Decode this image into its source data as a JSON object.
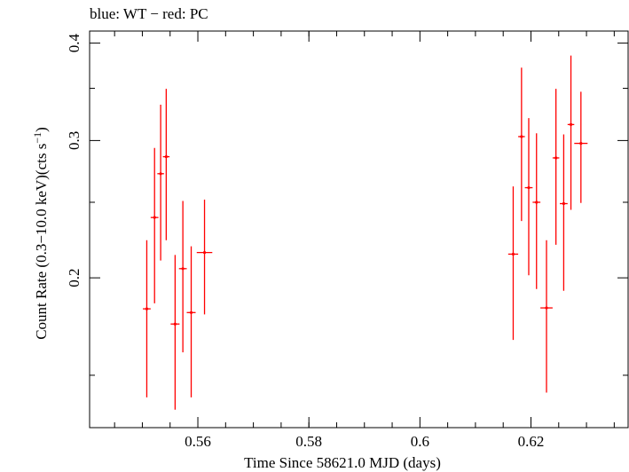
{
  "chart_data": {
    "type": "scatter",
    "title": "blue: WT − red: PC",
    "xlabel": "Time Since 58621.0 MJD (days)",
    "ylabel_main": "Count Rate (0.3−10.0 keV)(cts s",
    "ylabel_sup": "−1",
    "ylabel_close": ")",
    "xlim": [
      0.5405,
      0.6375
    ],
    "ylim": [
      0.1285,
      0.4145
    ],
    "y_scale": "log",
    "grid": false,
    "x_ticks": [
      {
        "value": 0.56,
        "label": "0.56"
      },
      {
        "value": 0.58,
        "label": "0.58"
      },
      {
        "value": 0.6,
        "label": "0.6"
      },
      {
        "value": 0.62,
        "label": "0.62"
      }
    ],
    "y_ticks": [
      {
        "value": 0.2,
        "label": "0.2"
      },
      {
        "value": 0.3,
        "label": "0.3"
      },
      {
        "value": 0.4,
        "label": "0.4"
      }
    ],
    "series": [
      {
        "color": "#ff0000",
        "points": [
          {
            "x": 0.5508,
            "xerr": 0.0007,
            "y": 0.1825,
            "ylo": 0.1405,
            "yhi": 0.2235
          },
          {
            "x": 0.5522,
            "xerr": 0.0007,
            "y": 0.239,
            "ylo": 0.1855,
            "yhi": 0.2935
          },
          {
            "x": 0.5533,
            "xerr": 0.0006,
            "y": 0.272,
            "ylo": 0.2105,
            "yhi": 0.3335
          },
          {
            "x": 0.5543,
            "xerr": 0.0006,
            "y": 0.286,
            "ylo": 0.2235,
            "yhi": 0.3495
          },
          {
            "x": 0.5559,
            "xerr": 0.0008,
            "y": 0.1745,
            "ylo": 0.1355,
            "yhi": 0.214
          },
          {
            "x": 0.5573,
            "xerr": 0.0007,
            "y": 0.2055,
            "ylo": 0.1605,
            "yhi": 0.251
          },
          {
            "x": 0.5588,
            "xerr": 0.0008,
            "y": 0.1805,
            "ylo": 0.1405,
            "yhi": 0.2195
          },
          {
            "x": 0.5612,
            "xerr": 0.0014,
            "y": 0.2155,
            "ylo": 0.1795,
            "yhi": 0.252
          },
          {
            "x": 0.6168,
            "xerr": 0.0009,
            "y": 0.2145,
            "ylo": 0.1665,
            "yhi": 0.262
          },
          {
            "x": 0.6183,
            "xerr": 0.0006,
            "y": 0.3035,
            "ylo": 0.2365,
            "yhi": 0.372
          },
          {
            "x": 0.6196,
            "xerr": 0.0007,
            "y": 0.261,
            "ylo": 0.2015,
            "yhi": 0.3205
          },
          {
            "x": 0.621,
            "xerr": 0.0007,
            "y": 0.25,
            "ylo": 0.1935,
            "yhi": 0.3065
          },
          {
            "x": 0.6228,
            "xerr": 0.0011,
            "y": 0.183,
            "ylo": 0.1425,
            "yhi": 0.2235
          },
          {
            "x": 0.6245,
            "xerr": 0.0006,
            "y": 0.285,
            "ylo": 0.2205,
            "yhi": 0.3495
          },
          {
            "x": 0.6259,
            "xerr": 0.0007,
            "y": 0.249,
            "ylo": 0.1925,
            "yhi": 0.3055
          },
          {
            "x": 0.6272,
            "xerr": 0.0006,
            "y": 0.3145,
            "ylo": 0.2445,
            "yhi": 0.3855
          },
          {
            "x": 0.629,
            "xerr": 0.0012,
            "y": 0.2975,
            "ylo": 0.2495,
            "yhi": 0.3465
          }
        ]
      }
    ]
  }
}
